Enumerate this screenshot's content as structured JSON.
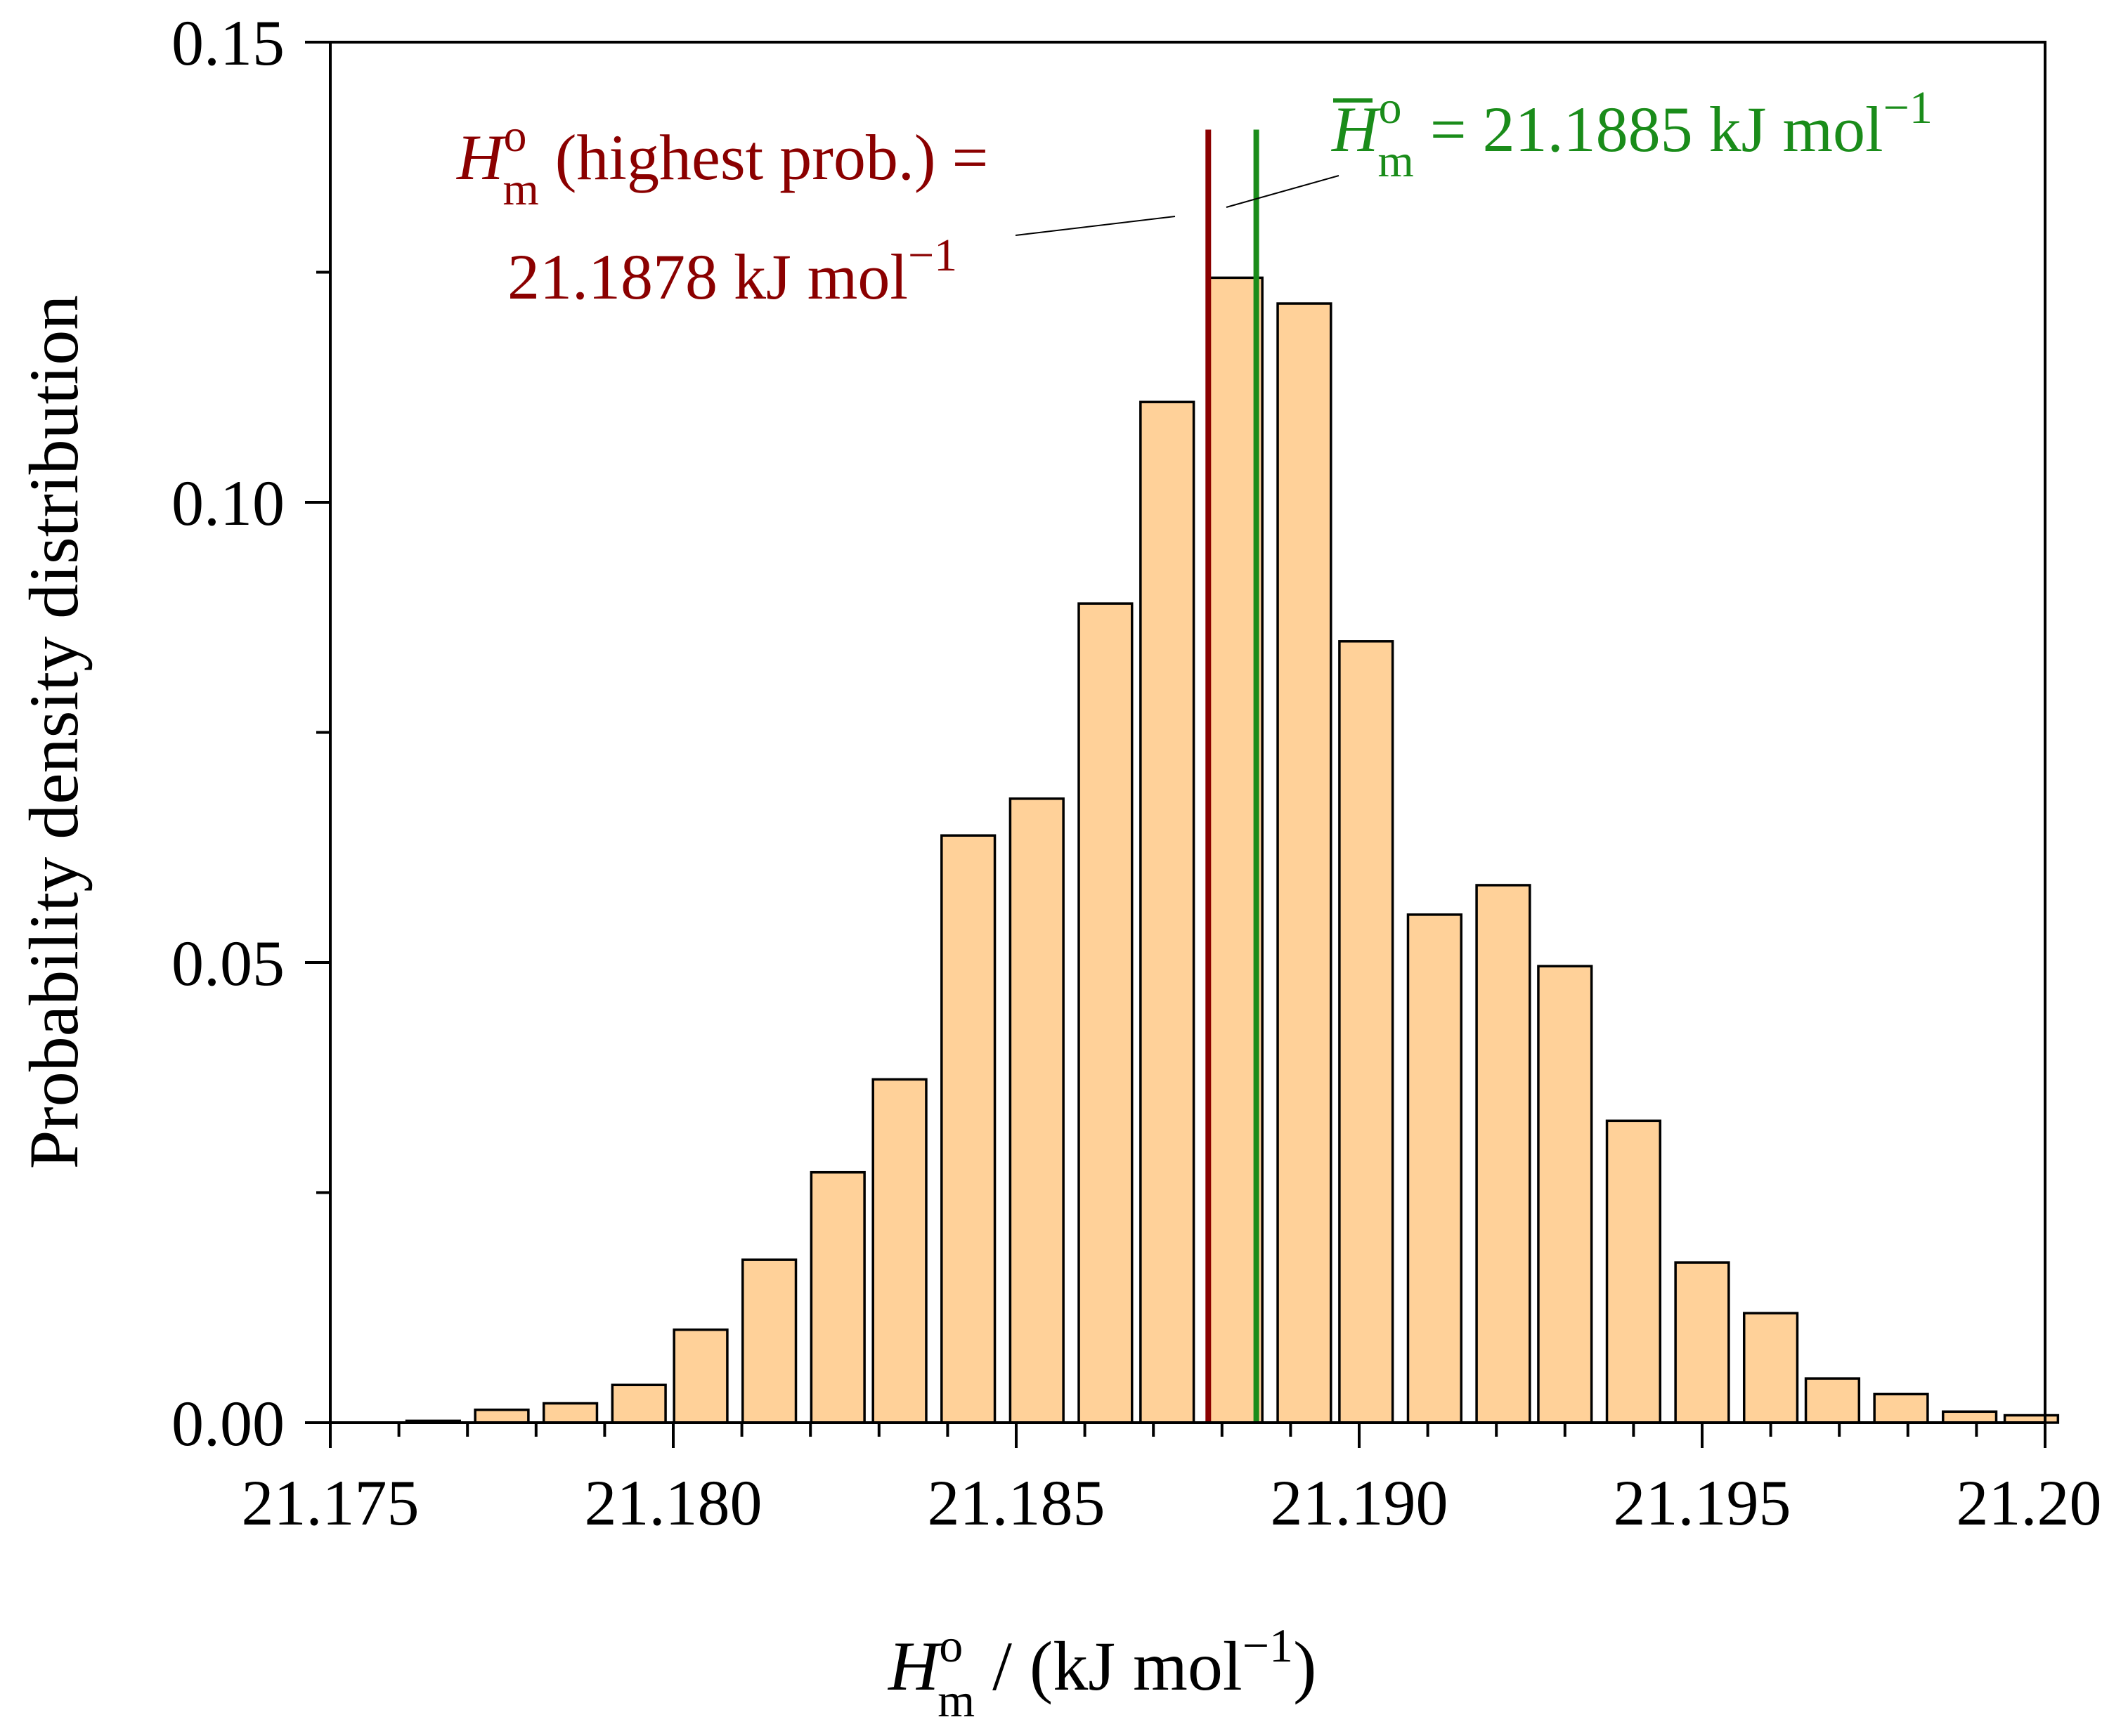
{
  "chart_data": {
    "type": "bar",
    "title": "",
    "xlabel": {
      "symbol": "H",
      "superscript": "o",
      "subscript": "m",
      "unit_prefix": " / (kJ mol",
      "unit_exponent": "−1",
      "unit_suffix": ")"
    },
    "ylabel": "Probability density distribution",
    "xlim": [
      21.175,
      21.2
    ],
    "ylim": [
      0,
      0.15
    ],
    "xticks": [
      "21.175",
      "21.180",
      "21.185",
      "21.190",
      "21.195",
      "21.200"
    ],
    "yticks": [
      "0.00",
      "0.05",
      "0.10",
      "0.15"
    ],
    "bin_width": 0.00097,
    "bin_centers": [
      21.1765,
      21.1775,
      21.1785,
      21.1795,
      21.1804,
      21.1814,
      21.1824,
      21.1833,
      21.1843,
      21.1853,
      21.1863,
      21.1872,
      21.1882,
      21.1892,
      21.1901,
      21.1911,
      21.1921,
      21.193,
      21.194,
      21.195,
      21.196,
      21.1969,
      21.1979,
      21.1989,
      21.1998
    ],
    "values": [
      0.0002,
      0.0014,
      0.0021,
      0.0041,
      0.0101,
      0.0177,
      0.0272,
      0.0373,
      0.0638,
      0.0678,
      0.089,
      0.1109,
      0.1244,
      0.1216,
      0.0849,
      0.0552,
      0.0584,
      0.0496,
      0.0328,
      0.0174,
      0.0119,
      0.0048,
      0.0031,
      0.0012,
      0.0008
    ],
    "vlines": [
      {
        "name": "highest-prob",
        "x": 21.1878,
        "y_top": 0.1405,
        "color": "#8b0000"
      },
      {
        "name": "mean",
        "x": 21.1885,
        "y_top": 0.1405,
        "color": "#1a8c1a"
      }
    ],
    "annotations": {
      "highest_prob": {
        "symbol": "H",
        "superscript": "o",
        "subscript": "m",
        "text_line1": " (highest prob.) =",
        "text_line2": "21.1878 kJ mol",
        "exponent": "−1",
        "color": "#8b0000"
      },
      "mean": {
        "symbol": "H",
        "superscript": "o",
        "subscript": "m",
        "text": " = 21.1885 kJ mol",
        "exponent": "−1",
        "color": "#1a8c1a"
      }
    }
  }
}
